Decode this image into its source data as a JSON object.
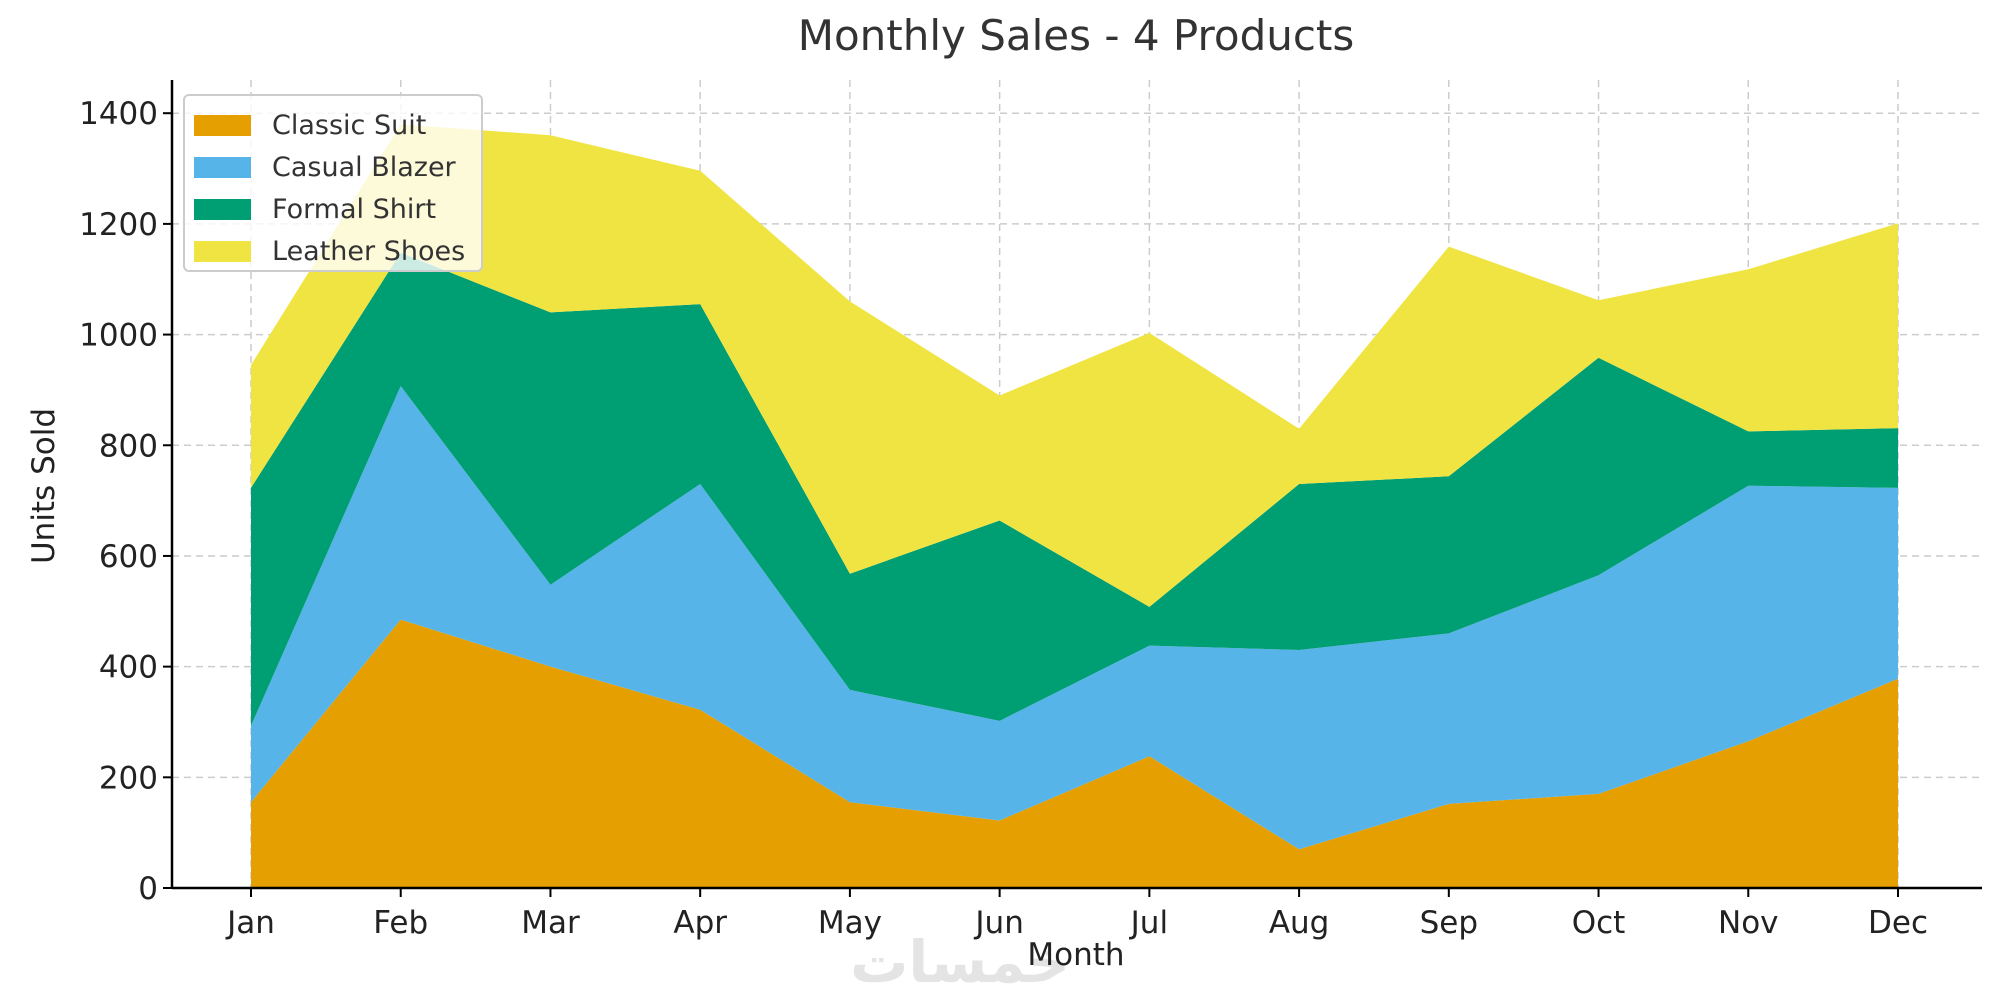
{
  "chart_data": {
    "type": "area",
    "stacked": true,
    "title": "Monthly Sales - 4 Products",
    "xlabel": "Month",
    "ylabel": "Units Sold",
    "ylim": [
      0,
      1460
    ],
    "yticks": [
      0,
      200,
      400,
      600,
      800,
      1000,
      1200,
      1400
    ],
    "grid": true,
    "legend_position": "top-left",
    "categories": [
      "Jan",
      "Feb",
      "Mar",
      "Apr",
      "May",
      "Jun",
      "Jul",
      "Aug",
      "Sep",
      "Oct",
      "Nov",
      "Dec"
    ],
    "series": [
      {
        "name": "Classic Suit",
        "color": "#E69F00",
        "values": [
          155,
          485,
          400,
          322,
          155,
          122,
          238,
          70,
          152,
          170,
          265,
          378
        ]
      },
      {
        "name": "Casual Blazer",
        "color": "#56B4E9",
        "values": [
          138,
          422,
          148,
          408,
          203,
          180,
          200,
          360,
          308,
          395,
          462,
          345
        ]
      },
      {
        "name": "Formal Shirt",
        "color": "#009E73",
        "values": [
          430,
          241,
          492,
          325,
          210,
          362,
          70,
          300,
          284,
          393,
          98,
          108
        ]
      },
      {
        "name": "Leather Shoes",
        "color": "#F0E442",
        "values": [
          222,
          232,
          320,
          241,
          492,
          226,
          495,
          100,
          415,
          104,
          293,
          370
        ]
      }
    ]
  },
  "watermark": {
    "text": "خمسات"
  },
  "colors": {
    "axis": "#000000",
    "grid": "#cccccc",
    "text": "#333333"
  }
}
